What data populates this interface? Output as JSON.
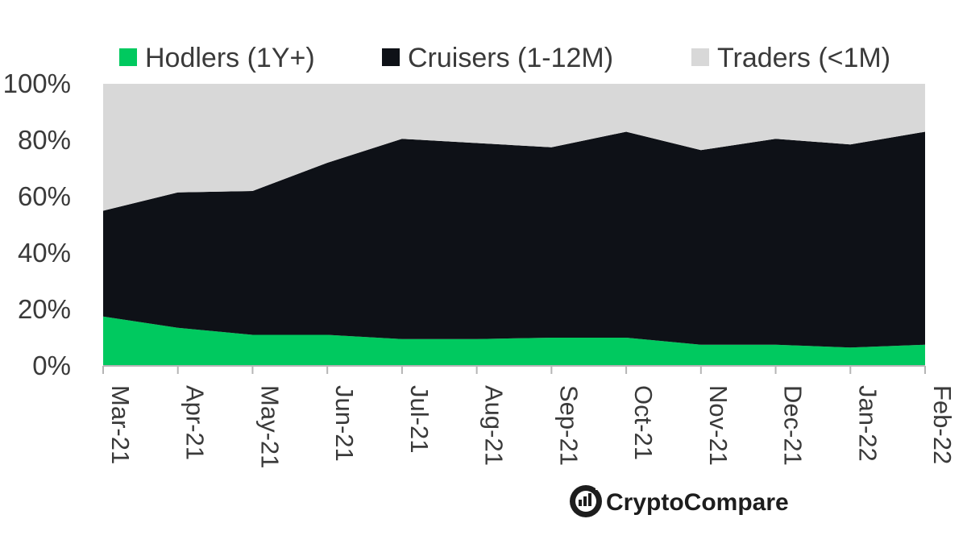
{
  "chart_data": {
    "type": "area",
    "stacked": true,
    "normalized": true,
    "title": "",
    "xlabel": "",
    "ylabel": "",
    "categories": [
      "Mar-21",
      "Apr-21",
      "May-21",
      "Jun-21",
      "Jul-21",
      "Aug-21",
      "Sep-21",
      "Oct-21",
      "Nov-21",
      "Dec-21",
      "Jan-22",
      "Feb-22"
    ],
    "series": [
      {
        "name": "Hodlers (1Y+)",
        "color": "#00c95f",
        "values": [
          17.5,
          13.5,
          11,
          11,
          9.5,
          9.5,
          10,
          10,
          7.5,
          7.5,
          6.5,
          7.5
        ]
      },
      {
        "name": "Cruisers (1-12M)",
        "color": "#0e1117",
        "values": [
          37.5,
          48,
          51,
          61,
          71,
          69.5,
          67.5,
          73,
          69,
          73,
          72,
          75.5
        ]
      },
      {
        "name": "Traders (<1M)",
        "color": "#d8d8d8",
        "values": [
          45,
          38.5,
          38,
          28,
          19.5,
          21,
          22.5,
          17,
          23.5,
          19.5,
          21.5,
          17
        ]
      }
    ],
    "ylim": [
      0,
      100
    ],
    "yticks": [
      "0%",
      "20%",
      "40%",
      "60%",
      "80%",
      "100%"
    ],
    "ytick_values": [
      0,
      20,
      40,
      60,
      80,
      100
    ],
    "legend_position": "top",
    "grid": false
  },
  "brand": {
    "name": "CryptoCompare",
    "logo_icon": "cryptocompare-logo-icon"
  }
}
